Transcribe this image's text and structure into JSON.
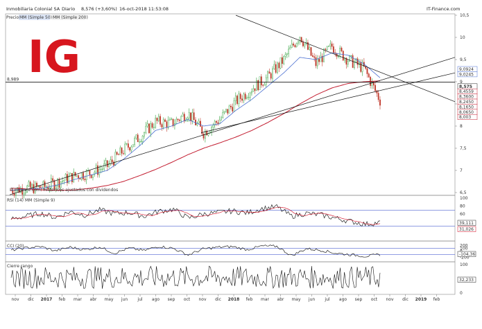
{
  "header": {
    "title": "Inmobiliaria Colonial SA",
    "period": "Diario",
    "quote": "8,576 (+3,60%)",
    "timestamp": "16-oct-2018 11:53:08",
    "site": "IT-Finance.com"
  },
  "legend_main": {
    "prefix": "Precio",
    "series": [
      "MM (Simple 50)",
      "MM (Simple 200)"
    ]
  },
  "main_note": "IT-Finance.com: Históricos ajustados con dividendos",
  "logo": {
    "text": "IG",
    "color": "#d7161e"
  },
  "colors": {
    "price_up": "#2e9f3a",
    "price_down": "#c0392b",
    "ma50": "#4a6fd1",
    "ma200": "#c21c2f",
    "trendline": "#111111",
    "rsi_line": "#222222",
    "band_line": "#4f63d2",
    "hline_red": "#d0021b"
  },
  "chart_data": [
    {
      "type": "line",
      "panel": "price",
      "title": "Inmobiliaria Colonial SA",
      "x_labels": [
        "nov",
        "dic",
        "2017",
        "feb",
        "mar",
        "abr",
        "may",
        "jun",
        "jul",
        "ago",
        "sep",
        "oct",
        "nov",
        "dic",
        "2018",
        "feb",
        "mar",
        "abr",
        "may",
        "jun",
        "jul",
        "ago",
        "sep",
        "oct",
        "nov",
        "dic",
        "2019",
        "feb",
        "mar"
      ],
      "ylim": [
        6.5,
        10.5
      ],
      "y_ticks": [
        6.5,
        7,
        7.5,
        8,
        8.5,
        9,
        9.5,
        10,
        10.5
      ],
      "y_tick_labels": [
        "6,5",
        "7",
        "7,5",
        "8",
        "8,5",
        "9",
        "9,5",
        "10",
        "10,5"
      ],
      "series": [
        {
          "name": "Precio",
          "x_index": [
            0,
            1,
            2,
            3,
            4,
            5,
            6,
            7,
            8,
            9,
            10,
            11,
            12,
            13,
            14,
            15,
            16,
            17,
            18,
            19,
            20,
            21,
            22,
            23
          ],
          "values": [
            6.55,
            6.6,
            6.62,
            6.75,
            6.88,
            6.95,
            7.1,
            7.45,
            7.75,
            8.1,
            8.05,
            8.3,
            7.85,
            8.15,
            8.55,
            8.85,
            9.1,
            9.5,
            10.05,
            9.4,
            9.8,
            9.5,
            9.3,
            8.58
          ]
        },
        {
          "name": "MM (Simple 50)",
          "x_index": [
            0,
            1,
            2,
            3,
            4,
            5,
            6,
            7,
            8,
            9,
            10,
            11,
            12,
            13,
            14,
            15,
            16,
            17,
            18,
            19,
            20,
            21,
            22,
            23
          ],
          "values": [
            6.55,
            6.58,
            6.6,
            6.68,
            6.8,
            6.9,
            7.0,
            7.25,
            7.55,
            7.9,
            8.0,
            8.15,
            8.0,
            8.05,
            8.35,
            8.6,
            8.9,
            9.2,
            9.55,
            9.5,
            9.65,
            9.6,
            9.4,
            9.09
          ]
        },
        {
          "name": "MM (Simple 200)",
          "x_index": [
            0,
            1,
            2,
            3,
            4,
            5,
            6,
            7,
            8,
            9,
            10,
            11,
            12,
            13,
            14,
            15,
            16,
            17,
            18,
            19,
            20,
            21,
            22,
            23
          ],
          "values": [
            6.6,
            6.58,
            6.56,
            6.55,
            6.56,
            6.6,
            6.66,
            6.75,
            6.88,
            7.02,
            7.18,
            7.35,
            7.5,
            7.62,
            7.75,
            7.9,
            8.08,
            8.28,
            8.5,
            8.7,
            8.86,
            8.96,
            9.0,
            9.02
          ]
        }
      ],
      "reference_line": {
        "label": "8,989",
        "value": 8.989
      },
      "right_value_labels": [
        "9,0924",
        "9,0245",
        "8,575",
        "8,4559",
        "8,3600",
        "8,2450",
        "8,1650",
        "8,0650",
        "8,003"
      ]
    },
    {
      "type": "line",
      "panel": "rsi",
      "title": "RSI (14)",
      "legend": [
        "RSI (14)",
        "MM (Simple 9)"
      ],
      "ylim": [
        0,
        100
      ],
      "y_ticks": [
        0,
        20,
        40,
        60,
        80,
        100
      ],
      "y_tick_labels": [
        "",
        "20",
        "40",
        "60",
        "80",
        "100"
      ],
      "bands": [
        30,
        70
      ],
      "last_values": [
        "39,111",
        "31,026"
      ],
      "values": [
        48,
        55,
        62,
        52,
        66,
        58,
        70,
        61,
        64,
        55,
        67,
        72,
        50,
        60,
        64,
        68,
        63,
        74,
        78,
        55,
        62,
        58,
        50,
        42,
        35,
        39
      ]
    },
    {
      "type": "line",
      "panel": "cci",
      "title": "CCI (20)",
      "ylim": [
        -300,
        300
      ],
      "y_ticks": [
        -200,
        0,
        100,
        200
      ],
      "y_tick_labels": [
        "-200",
        "0",
        "100",
        "200"
      ],
      "bands": [
        -100,
        100
      ],
      "last_values": [
        "-104,36"
      ],
      "values": [
        40,
        120,
        160,
        20,
        140,
        60,
        150,
        -60,
        110,
        30,
        170,
        100,
        -120,
        80,
        140,
        160,
        60,
        180,
        170,
        -140,
        90,
        40,
        -60,
        -110,
        -160,
        -104
      ]
    },
    {
      "type": "area",
      "panel": "volume",
      "title": "Cierre rango",
      "y_ticks": [
        0,
        100
      ],
      "y_tick_labels": [
        "0",
        "100"
      ],
      "last_values": [
        "32,233"
      ]
    }
  ]
}
